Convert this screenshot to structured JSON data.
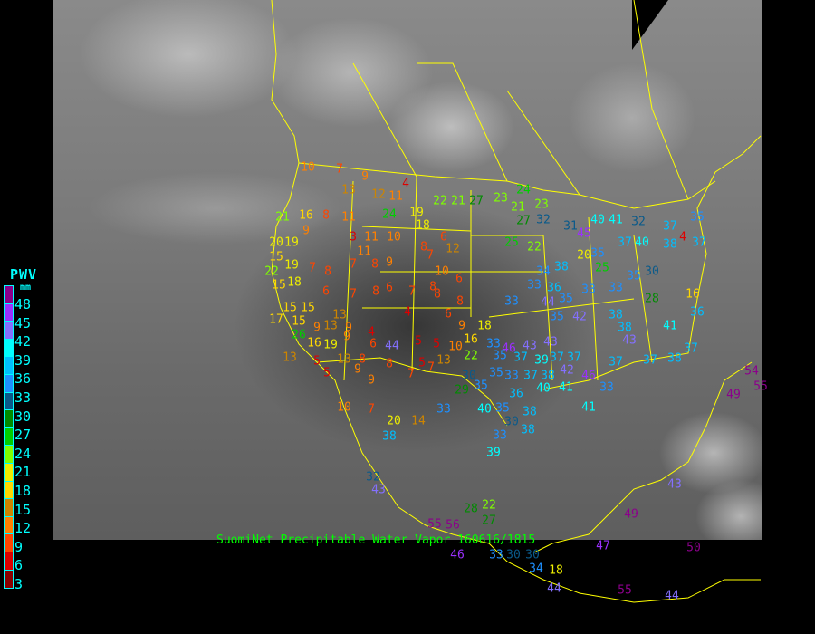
{
  "legend": {
    "title": "PWV",
    "unit": "mm",
    "labels": [
      "48",
      "45",
      "42",
      "39",
      "36",
      "33",
      "30",
      "27",
      "24",
      "21",
      "18",
      "15",
      "12",
      "9",
      "6",
      "3"
    ],
    "colors": [
      "#8b008b",
      "#9b30ff",
      "#8470ff",
      "#00ffff",
      "#00bfff",
      "#1e90ff",
      "#0a5a8a",
      "#008b00",
      "#00cd00",
      "#7fff00",
      "#eeee00",
      "#ffd700",
      "#cd8500",
      "#ff8000",
      "#ff4500",
      "#dd0000",
      "#8b0000"
    ]
  },
  "caption": "SuomiNet Precipitable Water Vapor 160616/1815",
  "stations": [
    10,
    7,
    9,
    4,
    13,
    12,
    11,
    22,
    21,
    27,
    23,
    24,
    23,
    21,
    27,
    21,
    16,
    8,
    11,
    24,
    19,
    18,
    32,
    22,
    31,
    40,
    41,
    32,
    37,
    35,
    20,
    15,
    19,
    9,
    3,
    11,
    10,
    6,
    7,
    12,
    8,
    25,
    45,
    35,
    37,
    40,
    38,
    4,
    37,
    22,
    19,
    7,
    8,
    7,
    9,
    11,
    8,
    10,
    6,
    8,
    34,
    38,
    25,
    20,
    35,
    30,
    15,
    18,
    6,
    7,
    8,
    6,
    7,
    8,
    8,
    33,
    33,
    36,
    44,
    35,
    33,
    33,
    28,
    16,
    15,
    15,
    17,
    15,
    13,
    4,
    6,
    35,
    42,
    38,
    41,
    36,
    26,
    9,
    13,
    9,
    4,
    9,
    16,
    18,
    38,
    43,
    16,
    19,
    9,
    6,
    44,
    5,
    5,
    33,
    46,
    43,
    43,
    13,
    5,
    13,
    8,
    8,
    5,
    13,
    10,
    22,
    35,
    37,
    39,
    37,
    37,
    37,
    37,
    38,
    37,
    5,
    9,
    9,
    7,
    7,
    30,
    35,
    33,
    37,
    38,
    42,
    46,
    33,
    29,
    35,
    36,
    40,
    41,
    33,
    40,
    35,
    30,
    38,
    41,
    10,
    7,
    20,
    14,
    33,
    38,
    38,
    39,
    32,
    43,
    28,
    22,
    27,
    55,
    56,
    46,
    33,
    30,
    30,
    34,
    18,
    49,
    47,
    50,
    55,
    44,
    44,
    54,
    49,
    55,
    43
  ]
}
